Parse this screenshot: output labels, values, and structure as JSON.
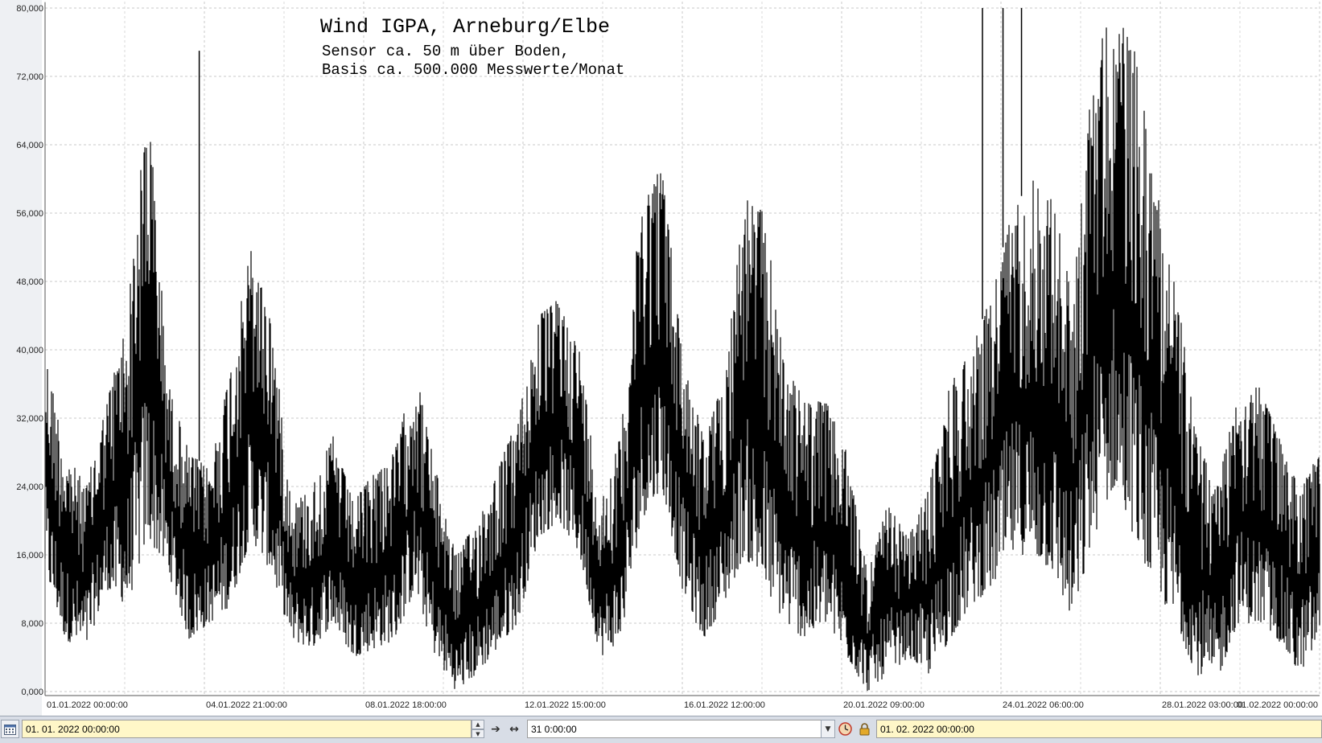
{
  "chart_data": {
    "type": "line",
    "title": "Wind  IGPA, Arneburg/Elbe",
    "subtitle_lines": [
      "Sensor ca. 50 m über Boden,",
      "Basis ca. 500.000 Messwerte/Monat"
    ],
    "ylim": [
      0,
      80
    ],
    "y_tick_labels": [
      "0,000",
      "8,000",
      "16,000",
      "24,000",
      "32,000",
      "40,000",
      "48,000",
      "56,000",
      "64,000",
      "72,000",
      "80,000"
    ],
    "y_tick_values": [
      0,
      8,
      16,
      24,
      32,
      40,
      48,
      56,
      64,
      72,
      80
    ],
    "x_range_days": [
      0,
      31
    ],
    "x_tick_labels": [
      "01.01.2022  00:00:00",
      "04.01.2022  21:00:00",
      "08.01.2022  18:00:00",
      "12.01.2022  15:00:00",
      "16.01.2022  12:00:00",
      "20.01.2022  09:00:00",
      "24.01.2022  06:00:00",
      "28.01.2022  03:00:00",
      "01.02.2022  00:00:00"
    ],
    "x_tick_days": [
      0,
      3.875,
      7.75,
      11.625,
      15.5,
      19.375,
      23.25,
      27.125,
      31
    ],
    "grid": true,
    "series": [
      {
        "color": "#000000",
        "envelope_day": [
          0,
          0.5,
          1,
          1.5,
          2,
          2.5,
          3,
          3.5,
          4,
          4.5,
          5,
          5.5,
          6,
          6.5,
          7,
          7.5,
          8,
          8.5,
          9,
          9.5,
          10,
          10.5,
          11,
          11.5,
          12,
          12.5,
          13,
          13.5,
          14,
          14.5,
          15,
          15.5,
          16,
          16.5,
          17,
          17.5,
          18,
          18.5,
          19,
          19.5,
          20,
          20.5,
          21,
          21.5,
          22,
          22.5,
          23,
          23.5,
          24,
          24.5,
          25,
          25.5,
          26,
          26.5,
          27,
          27.5,
          28,
          28.5,
          29,
          29.5,
          30,
          30.5,
          31
        ],
        "envelope_high": [
          40,
          28,
          24,
          34,
          44,
          70,
          36,
          28,
          26,
          38,
          52,
          44,
          22,
          24,
          30,
          22,
          26,
          28,
          38,
          26,
          16,
          20,
          26,
          32,
          44,
          46,
          40,
          22,
          30,
          58,
          62,
          40,
          30,
          36,
          58,
          56,
          38,
          34,
          34,
          28,
          14,
          22,
          18,
          24,
          36,
          40,
          46,
          56,
          60,
          58,
          46,
          74,
          80,
          75,
          60,
          48,
          30,
          24,
          36,
          36,
          30,
          24,
          28
        ],
        "envelope_low": [
          14,
          6,
          5,
          12,
          10,
          18,
          14,
          6,
          8,
          10,
          18,
          14,
          6,
          5,
          8,
          4,
          5,
          6,
          12,
          4,
          0,
          2,
          5,
          8,
          18,
          20,
          16,
          4,
          6,
          20,
          24,
          12,
          6,
          10,
          16,
          12,
          8,
          6,
          8,
          4,
          0,
          2,
          4,
          2,
          6,
          10,
          12,
          16,
          16,
          14,
          8,
          18,
          24,
          18,
          12,
          8,
          2,
          1,
          8,
          8,
          6,
          2,
          6
        ],
        "spike_values": [
          75,
          80,
          80,
          80
        ]
      }
    ]
  },
  "toolbar": {
    "start_value": "01. 01. 2022   00:00:00",
    "span_value": "31  0:00:00",
    "end_value": "01. 02. 2022   00:00:00",
    "calendar_icon": "calendar-icon",
    "spin_up_icon": "spin-up-icon",
    "spin_down_icon": "spin-down-icon",
    "shrink_icon": "shrink-arrows-icon",
    "expand_icon": "expand-arrows-icon",
    "dropdown_icon": "chevron-down-icon",
    "clock_icon": "clock-icon",
    "lock_icon": "lock-icon"
  }
}
